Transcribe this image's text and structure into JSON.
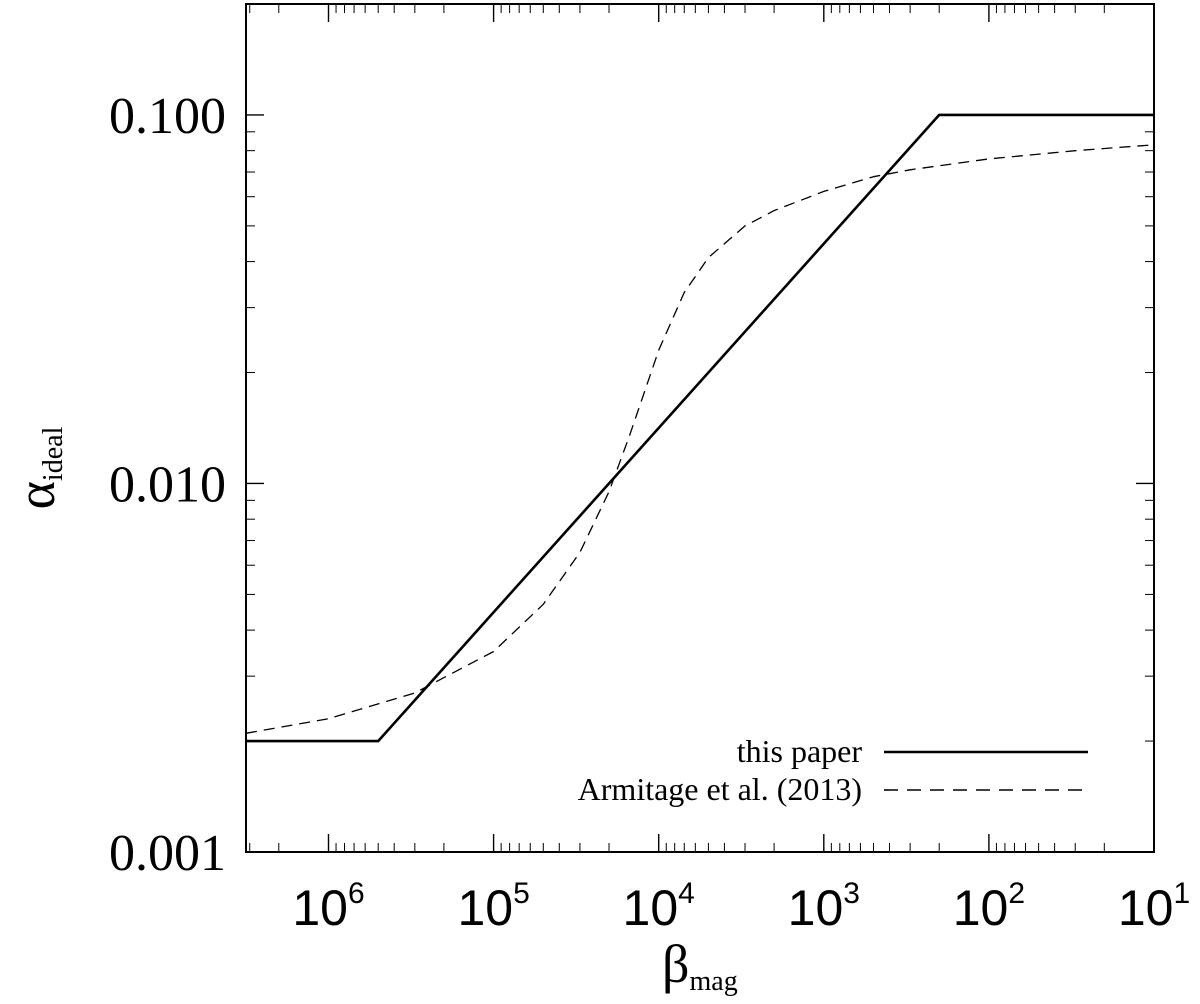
{
  "chart_data": {
    "type": "line",
    "x_scale": "log",
    "x_reversed": true,
    "y_scale": "log",
    "xlim": [
      3160000.0,
      10
    ],
    "ylim": [
      0.001,
      0.2
    ],
    "xlabel": {
      "main": "β",
      "sub": "mag"
    },
    "ylabel": {
      "main": "α",
      "sub": "ideal"
    },
    "x_ticks": [
      {
        "base": "10",
        "exp": "6",
        "value": 1000000
      },
      {
        "base": "10",
        "exp": "5",
        "value": 100000
      },
      {
        "base": "10",
        "exp": "4",
        "value": 10000
      },
      {
        "base": "10",
        "exp": "3",
        "value": 1000
      },
      {
        "base": "10",
        "exp": "2",
        "value": 100
      },
      {
        "base": "10",
        "exp": "1",
        "value": 10
      }
    ],
    "y_ticks": [
      {
        "label": "0.100",
        "value": 0.1
      },
      {
        "label": "0.010",
        "value": 0.01
      },
      {
        "label": "0.001",
        "value": 0.001
      }
    ],
    "legend_position": "bottom-right",
    "series": [
      {
        "name": "this paper",
        "style": "solid",
        "x": [
          3160000.0,
          500000,
          200,
          10
        ],
        "y": [
          0.002,
          0.002,
          0.1,
          0.1
        ]
      },
      {
        "name": "Armitage et al. (2013)",
        "style": "dashed",
        "x": [
          3160000.0,
          1000000,
          300000,
          100000,
          50000,
          30000,
          20000,
          15000,
          10000,
          7000,
          5000,
          3000,
          2000,
          1000,
          500,
          300,
          100,
          30,
          10
        ],
        "y": [
          0.0021,
          0.0023,
          0.0027,
          0.0035,
          0.0047,
          0.0065,
          0.0095,
          0.0135,
          0.023,
          0.033,
          0.041,
          0.05,
          0.055,
          0.062,
          0.068,
          0.071,
          0.076,
          0.08,
          0.083
        ]
      }
    ]
  }
}
